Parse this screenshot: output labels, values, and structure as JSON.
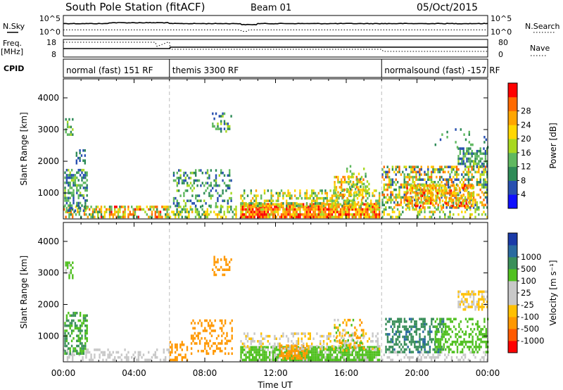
{
  "header": {
    "station": "South Pole Station (fitACF)",
    "beam": "Beam 01",
    "date": "05/Oct/2015"
  },
  "status_panels": {
    "nsky_label": "N.Sky",
    "nsky_ticks": [
      "10^5",
      "10^0"
    ],
    "nsearch_label": "N.Search",
    "nsearch_ticks": [
      "10^5",
      "10^0"
    ],
    "freq_label": "Freq.",
    "freq_unit": "[MHz]",
    "freq_ticks": [
      "18",
      "8"
    ],
    "nave_label": "Nave",
    "nave_ticks": [
      "80",
      "0"
    ],
    "cpid_label": "CPID",
    "cpid_segments": [
      {
        "label": "normal (fast) 151 RF",
        "start_hour": 0,
        "end_hour": 6
      },
      {
        "label": "themis 3300 RF",
        "start_hour": 6,
        "end_hour": 18
      },
      {
        "label": "normalsound (fast) -157 RF",
        "start_hour": 18,
        "end_hour": 24
      }
    ]
  },
  "x_axis": {
    "title": "Time UT",
    "tick_labels": [
      "00:00",
      "04:00",
      "08:00",
      "12:00",
      "16:00",
      "20:00",
      "00:00"
    ],
    "range_hours": [
      0,
      24
    ]
  },
  "colors": {
    "power_scale": [
      "#1010ff",
      "#2850b0",
      "#2e8b57",
      "#5fb85f",
      "#a8d820",
      "#ffd700",
      "#ffa500",
      "#ff6a00",
      "#ff0000"
    ],
    "velocity_scale": [
      "#ff0000",
      "#ff5a00",
      "#ff9800",
      "#ffc000",
      "#c8c8c8",
      "#c8c8c8",
      "#50c020",
      "#3a8f5a",
      "#2a6aa0",
      "#1a3aa8"
    ]
  },
  "chart_data": [
    {
      "type": "heatmap",
      "panel": "power",
      "ylabel": "Slant Range [km]",
      "y_ticks": [
        1000,
        2000,
        3000,
        4000
      ],
      "ylim": [
        180,
        4600
      ],
      "xlim": [
        0,
        24
      ],
      "colorbar": {
        "title": "Power [dB]",
        "tick_labels": [
          "4",
          "8",
          "12",
          "16",
          "20",
          "24",
          "28"
        ],
        "range": [
          0,
          32
        ]
      },
      "regions": [
        {
          "t0": 0.0,
          "t1": 6.0,
          "r0": 200,
          "r1": 560,
          "v0": 8,
          "v1": 30,
          "density": 0.55
        },
        {
          "t0": 0.05,
          "t1": 1.3,
          "r0": 400,
          "r1": 1700,
          "v0": 4,
          "v1": 16,
          "density": 0.55
        },
        {
          "t0": 0.1,
          "t1": 0.5,
          "r0": 2800,
          "r1": 3300,
          "v0": 8,
          "v1": 16,
          "density": 0.5
        },
        {
          "t0": 0.7,
          "t1": 1.2,
          "r0": 1900,
          "r1": 2300,
          "v0": 4,
          "v1": 10,
          "density": 0.3
        },
        {
          "t0": 6.0,
          "t1": 9.8,
          "r0": 200,
          "r1": 560,
          "v0": 8,
          "v1": 22,
          "density": 0.45
        },
        {
          "t0": 6.2,
          "t1": 9.5,
          "r0": 550,
          "r1": 1700,
          "v0": 4,
          "v1": 16,
          "density": 0.3
        },
        {
          "t0": 8.4,
          "t1": 9.5,
          "r0": 2900,
          "r1": 3500,
          "v0": 4,
          "v1": 16,
          "density": 0.35
        },
        {
          "t0": 10.0,
          "t1": 17.9,
          "r0": 200,
          "r1": 650,
          "v0": 16,
          "v1": 31,
          "density": 0.9
        },
        {
          "t0": 10.0,
          "t1": 17.9,
          "r0": 550,
          "r1": 1100,
          "v0": 8,
          "v1": 24,
          "density": 0.45
        },
        {
          "t0": 15.3,
          "t1": 17.0,
          "r0": 500,
          "r1": 1500,
          "v0": 12,
          "v1": 28,
          "density": 0.35
        },
        {
          "t0": 16.0,
          "t1": 17.3,
          "r0": 1000,
          "r1": 1800,
          "v0": 8,
          "v1": 20,
          "density": 0.3
        },
        {
          "t0": 18.0,
          "t1": 24.0,
          "r0": 200,
          "r1": 500,
          "v0": 8,
          "v1": 22,
          "density": 0.3
        },
        {
          "t0": 18.0,
          "t1": 24.0,
          "r0": 500,
          "r1": 1800,
          "v0": 4,
          "v1": 28,
          "density": 0.5
        },
        {
          "t0": 19.4,
          "t1": 23.2,
          "r0": 550,
          "r1": 1250,
          "v0": 16,
          "v1": 30,
          "density": 0.55
        },
        {
          "t0": 22.3,
          "t1": 24.0,
          "r0": 1800,
          "r1": 2400,
          "v0": 4,
          "v1": 16,
          "density": 0.6
        },
        {
          "t0": 21.0,
          "t1": 24.0,
          "r0": 2400,
          "r1": 3000,
          "v0": 4,
          "v1": 14,
          "density": 0.1
        }
      ]
    },
    {
      "type": "heatmap",
      "panel": "velocity",
      "ylabel": "Slant Range [km]",
      "y_ticks": [
        1000,
        2000,
        3000,
        4000
      ],
      "ylim": [
        180,
        4600
      ],
      "xlim": [
        0,
        24
      ],
      "colorbar": {
        "title": "Velocity [m s⁻¹]",
        "tick_labels": [
          "-1000",
          "-500",
          "-100",
          "-25",
          "25",
          "100",
          "500",
          "1000"
        ],
        "boundaries": [
          -1500,
          -1000,
          -500,
          -100,
          -25,
          25,
          100,
          500,
          1000,
          1500
        ]
      },
      "regions": [
        {
          "t0": 0.0,
          "t1": 6.0,
          "r0": 200,
          "r1": 600,
          "v0": -25,
          "v1": 25,
          "density": 0.35
        },
        {
          "t0": 0.05,
          "t1": 1.3,
          "r0": 400,
          "r1": 1700,
          "v0": 100,
          "v1": 1000,
          "density": 0.5
        },
        {
          "t0": 0.1,
          "t1": 0.5,
          "r0": 2800,
          "r1": 3300,
          "v0": 25,
          "v1": 500,
          "density": 0.45
        },
        {
          "t0": 6.0,
          "t1": 7.0,
          "r0": 200,
          "r1": 800,
          "v0": -500,
          "v1": -100,
          "density": 0.4
        },
        {
          "t0": 7.2,
          "t1": 9.5,
          "r0": 400,
          "r1": 1500,
          "v0": -500,
          "v1": -100,
          "density": 0.3
        },
        {
          "t0": 8.4,
          "t1": 9.5,
          "r0": 2900,
          "r1": 3500,
          "v0": -500,
          "v1": -100,
          "density": 0.3
        },
        {
          "t0": 10.0,
          "t1": 17.9,
          "r0": 200,
          "r1": 650,
          "v0": 25,
          "v1": 500,
          "density": 0.85
        },
        {
          "t0": 12.2,
          "t1": 13.8,
          "r0": 250,
          "r1": 700,
          "v0": -500,
          "v1": -100,
          "density": 0.6
        },
        {
          "t0": 10.0,
          "t1": 17.9,
          "r0": 550,
          "r1": 1100,
          "v0": -100,
          "v1": 100,
          "density": 0.3
        },
        {
          "t0": 15.3,
          "t1": 17.0,
          "r0": 500,
          "r1": 1500,
          "v0": -500,
          "v1": 500,
          "density": 0.3
        },
        {
          "t0": 18.0,
          "t1": 24.0,
          "r0": 200,
          "r1": 500,
          "v0": -25,
          "v1": 100,
          "density": 0.3
        },
        {
          "t0": 18.2,
          "t1": 21.5,
          "r0": 450,
          "r1": 1500,
          "v0": 500,
          "v1": 1200,
          "density": 0.5
        },
        {
          "t0": 21.0,
          "t1": 24.0,
          "r0": 450,
          "r1": 1500,
          "v0": 100,
          "v1": 500,
          "density": 0.45
        },
        {
          "t0": 22.3,
          "t1": 24.0,
          "r0": 1800,
          "r1": 2400,
          "v0": -100,
          "v1": 25,
          "density": 0.5
        }
      ]
    }
  ]
}
